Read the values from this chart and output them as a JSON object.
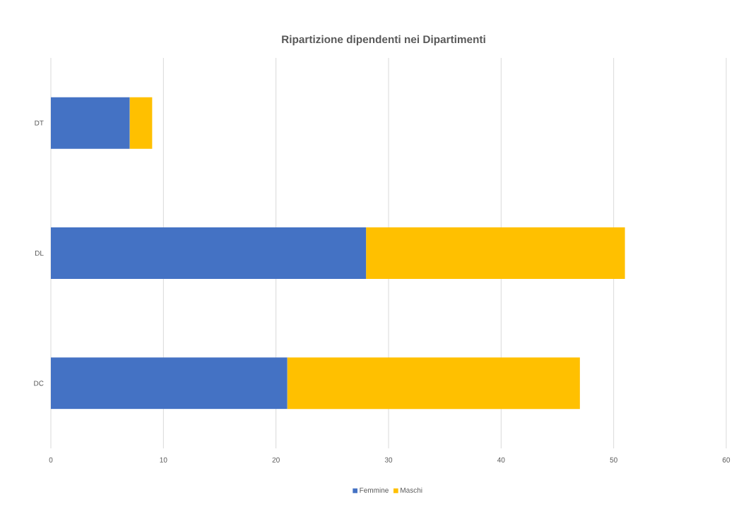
{
  "chart_data": {
    "type": "bar",
    "orientation": "horizontal",
    "stacked": true,
    "title": "Ripartizione dipendenti nei Dipartimenti",
    "categories": [
      "DT",
      "DL",
      "DC"
    ],
    "series": [
      {
        "name": "Femmine",
        "color": "#4472c4",
        "values": [
          7,
          28,
          21
        ]
      },
      {
        "name": "Maschi",
        "color": "#ffc000",
        "values": [
          2,
          23,
          26
        ]
      }
    ],
    "xlim": [
      0,
      60
    ],
    "xticks": [
      0,
      10,
      20,
      30,
      40,
      50,
      60
    ],
    "grid": "x",
    "legend": "bottom"
  }
}
